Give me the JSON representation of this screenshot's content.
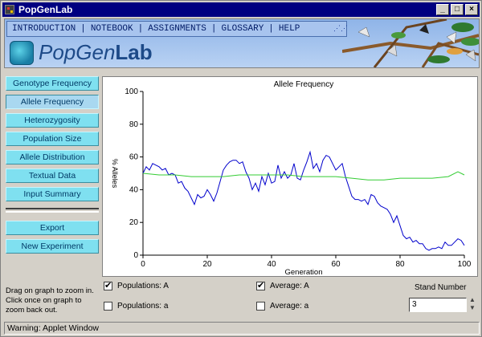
{
  "window": {
    "title": "PopGenLab",
    "controls": [
      "_",
      "□",
      "×"
    ]
  },
  "menu": {
    "items": [
      "INTRODUCTION",
      "NOTEBOOK",
      "ASSIGNMENTS",
      "GLOSSARY",
      "HELP"
    ]
  },
  "logo": {
    "prefix": "PopGen",
    "suffix": "Lab"
  },
  "sidebar": {
    "buttons": [
      {
        "label": "Genotype Frequency"
      },
      {
        "label": "Allele Frequency"
      },
      {
        "label": "Heterozygosity"
      },
      {
        "label": "Population Size"
      },
      {
        "label": "Allele Distribution"
      },
      {
        "label": "Textual Data"
      },
      {
        "label": "Input Summary"
      }
    ],
    "actions": [
      {
        "label": "Export"
      },
      {
        "label": "New Experiment"
      }
    ]
  },
  "hint": "Drag on graph to zoom in. Click once on graph to zoom back out.",
  "checkboxes": {
    "pop_A": {
      "label": "Populations: A",
      "checked": true
    },
    "pop_a": {
      "label": "Populations: a",
      "checked": false
    },
    "avg_A": {
      "label": "Average: A",
      "checked": true
    },
    "avg_a": {
      "label": "Average: a",
      "checked": false
    }
  },
  "stand": {
    "label": "Stand Number",
    "value": "3"
  },
  "status": "Warning: Applet Window",
  "colors": {
    "population_line": "#0000cc",
    "average_line": "#33cc33",
    "sidebar_button": "#7fe0f0"
  },
  "chart_data": {
    "type": "line",
    "title": "Allele Frequency",
    "xlabel": "Generation",
    "ylabel": "% Alleles",
    "xlim": [
      0,
      100
    ],
    "ylim": [
      0,
      100
    ],
    "xticks": [
      0,
      20,
      40,
      60,
      80,
      100
    ],
    "yticks": [
      0,
      20,
      40,
      60,
      80,
      100
    ],
    "grid": false,
    "series": [
      {
        "x": [
          0,
          1,
          2,
          3,
          4,
          5,
          6,
          7,
          8,
          9,
          10,
          11,
          12,
          13,
          14,
          15,
          16,
          17,
          18,
          19,
          20,
          21,
          22,
          23,
          24,
          25,
          26,
          27,
          28,
          29,
          30,
          31,
          32,
          33,
          34,
          35,
          36,
          37,
          38,
          39,
          40,
          41,
          42,
          43,
          44,
          45,
          46,
          47,
          48,
          49,
          50,
          51,
          52,
          53,
          54,
          55,
          56,
          57,
          58,
          59,
          60,
          61,
          62,
          63,
          64,
          65,
          66,
          67,
          68,
          69,
          70,
          71,
          72,
          73,
          74,
          75,
          76,
          77,
          78,
          79,
          80,
          81,
          82,
          83,
          84,
          85,
          86,
          87,
          88,
          89,
          90,
          91,
          92,
          93,
          94,
          95,
          96,
          97,
          98,
          99,
          100
        ],
        "values": [
          50,
          54,
          52,
          56,
          55,
          54,
          52,
          53,
          49,
          50,
          49,
          44,
          45,
          41,
          39,
          35,
          31,
          37,
          35,
          36,
          40,
          37,
          33,
          38,
          45,
          52,
          55,
          57,
          58,
          58,
          56,
          57,
          51,
          47,
          40,
          44,
          39,
          48,
          43,
          50,
          44,
          45,
          55,
          47,
          51,
          47,
          49,
          56,
          47,
          46,
          52,
          57,
          63,
          53,
          56,
          51,
          58,
          61,
          60,
          56,
          52,
          54,
          56,
          48,
          42,
          36,
          34,
          34,
          33,
          34,
          31,
          37,
          36,
          32,
          30,
          29,
          28,
          25,
          20,
          24,
          18,
          12,
          10,
          11,
          8,
          9,
          7,
          7,
          4,
          3,
          4,
          4,
          5,
          4,
          8,
          6,
          6,
          8,
          10,
          9,
          6
        ]
      },
      {
        "x": [
          0,
          5,
          10,
          15,
          20,
          25,
          30,
          35,
          40,
          45,
          50,
          55,
          60,
          65,
          70,
          75,
          80,
          85,
          90,
          95,
          98,
          100
        ],
        "values": [
          50,
          49,
          49,
          48,
          48,
          48,
          49,
          49,
          49,
          49,
          48,
          48,
          48,
          47,
          46,
          46,
          47,
          47,
          47,
          48,
          51,
          49
        ]
      }
    ]
  }
}
